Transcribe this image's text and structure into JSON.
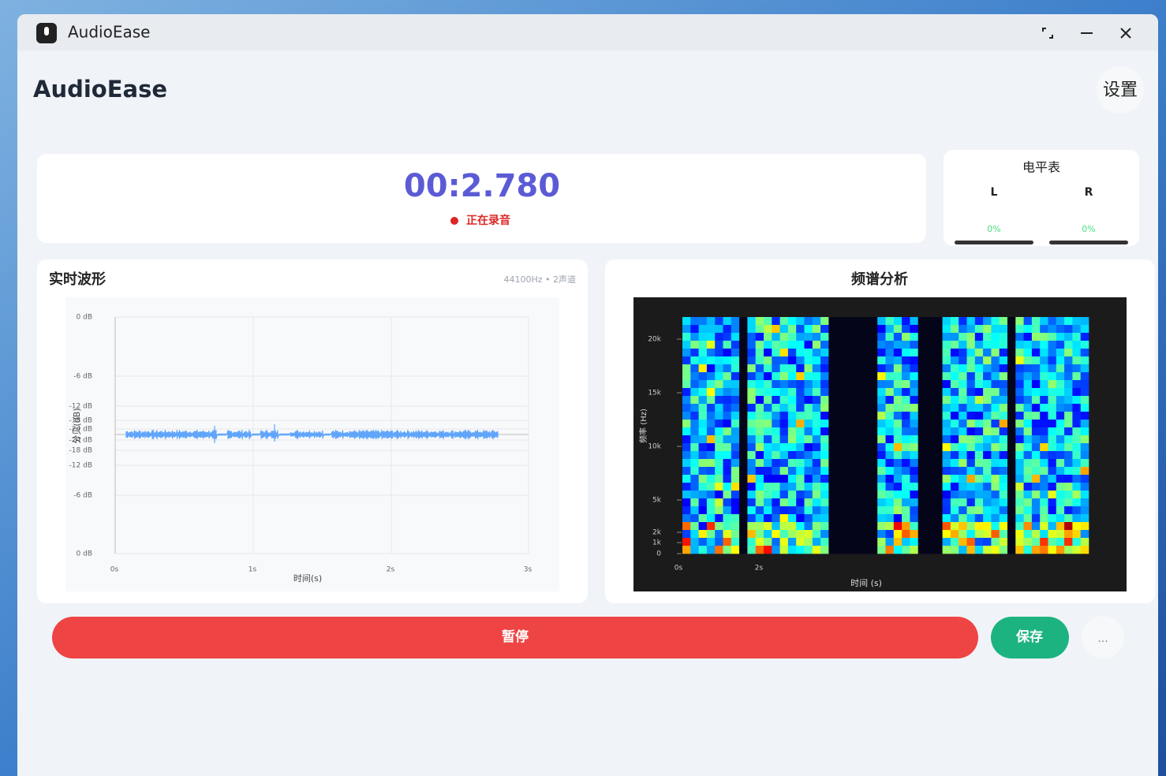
{
  "window": {
    "title": "AudioEase"
  },
  "header": {
    "title": "AudioEase",
    "settings": "设置"
  },
  "timer": {
    "time": "00:2.780",
    "status": "正在录音"
  },
  "level_meter": {
    "title": "电平表",
    "channels": [
      {
        "name": "L",
        "level": "0%"
      },
      {
        "name": "R",
        "level": "0%"
      }
    ]
  },
  "waveform": {
    "title": "实时波形",
    "info": "44100Hz • 2声道",
    "y_axis_title": "分贝(dB)",
    "x_axis_title": "时间(s)",
    "yticks": [
      "0 dB",
      "-6 dB",
      "-12 dB",
      "-18 dB",
      "-24 dB",
      "-24 dB",
      "-18 dB",
      "-12 dB",
      "-6 dB",
      "0 dB"
    ],
    "xticks": [
      "0s",
      "1s",
      "2s",
      "3s"
    ]
  },
  "spectrum": {
    "title": "频谱分析",
    "y_axis_title": "频率 (Hz)",
    "x_axis_title": "时间 (s)",
    "yticks": [
      "20k",
      "15k",
      "10k",
      "5k",
      "2k",
      "1k",
      "0"
    ],
    "xticks": [
      "0s",
      "2s"
    ]
  },
  "controls": {
    "pause": "暂停",
    "save": "保存",
    "more": "..."
  }
}
